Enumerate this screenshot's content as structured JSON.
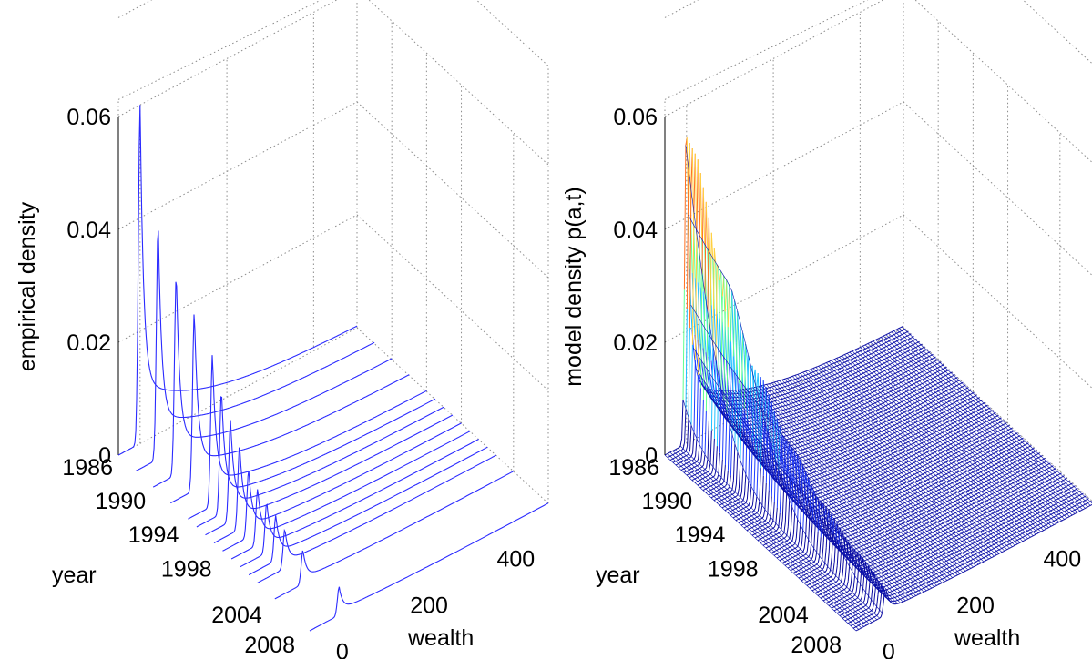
{
  "chart_data": [
    {
      "type": "line",
      "view": "3d-waterfall",
      "title": "",
      "zlabel": "empirical density",
      "ylabel": "year",
      "xlabel": "wealth",
      "zlim": [
        0,
        0.06
      ],
      "z_ticks": [
        "0",
        "0.02",
        "0.04",
        "0.06"
      ],
      "ylim": [
        1986,
        2008
      ],
      "year_ticks": [
        "1986",
        "1990",
        "1994",
        "1998",
        "2004",
        "2008"
      ],
      "xlim": [
        -50,
        500
      ],
      "wealth_ticks": [
        "0",
        "200",
        "400"
      ],
      "grid": true,
      "line_color": "#2b2bff",
      "series": [
        {
          "year": 1986,
          "peak": 0.06
        },
        {
          "year": 1988,
          "peak": 0.042
        },
        {
          "year": 1990,
          "peak": 0.036
        },
        {
          "year": 1992,
          "peak": 0.032
        },
        {
          "year": 1994,
          "peak": 0.027
        },
        {
          "year": 1995,
          "peak": 0.022
        },
        {
          "year": 1996,
          "peak": 0.018
        },
        {
          "year": 1997,
          "peak": 0.015
        },
        {
          "year": 1998,
          "peak": 0.012
        },
        {
          "year": 1999,
          "peak": 0.01
        },
        {
          "year": 2000,
          "peak": 0.009
        },
        {
          "year": 2001,
          "peak": 0.008
        },
        {
          "year": 2002,
          "peak": 0.007
        },
        {
          "year": 2004,
          "peak": 0.006
        },
        {
          "year": 2008,
          "peak": 0.005
        }
      ]
    },
    {
      "type": "surface",
      "view": "3d-mesh",
      "title": "",
      "zlabel": "model density p(a,t)",
      "ylabel": "year",
      "xlabel": "wealth",
      "zlim": [
        0,
        0.06
      ],
      "z_ticks": [
        "0",
        "0.02",
        "0.04",
        "0.06"
      ],
      "ylim": [
        1986,
        2008
      ],
      "year_ticks": [
        "1986",
        "1990",
        "1994",
        "1998",
        "2004",
        "2008"
      ],
      "xlim": [
        -50,
        500
      ],
      "wealth_ticks": [
        "0",
        "200",
        "400"
      ],
      "grid": true,
      "colormap": [
        "#0a0aa0",
        "#1e3cff",
        "#20c0ff",
        "#60ff90",
        "#ffd040",
        "#ff7020"
      ],
      "peak_start": 0.06,
      "peak_end": 0.005
    }
  ]
}
